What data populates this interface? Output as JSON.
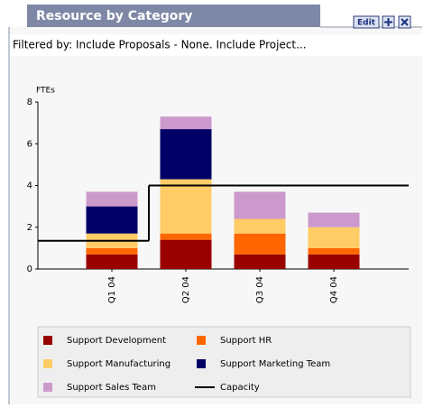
{
  "widget": {
    "title": "Resource by Category",
    "edit": "Edit",
    "filter": "Filtered by: Include Proposals - None. Include Project..."
  },
  "chart_data": {
    "type": "bar",
    "stacked": true,
    "ylabel": "FTEs",
    "categories": [
      "Q1 04",
      "Q2 04",
      "Q3 04",
      "Q4 04"
    ],
    "ylim": [
      0,
      8
    ],
    "yticks": [
      0,
      2,
      4,
      6,
      8
    ],
    "grid": false,
    "series": [
      {
        "name": "Support Development",
        "color": "#990000",
        "values": [
          0.7,
          1.4,
          0.7,
          0.7
        ]
      },
      {
        "name": "Support HR",
        "color": "#ff6600",
        "values": [
          0.3,
          0.3,
          1.0,
          0.3
        ]
      },
      {
        "name": "Support Manufacturing",
        "color": "#ffcc66",
        "values": [
          0.7,
          2.6,
          0.7,
          1.0
        ]
      },
      {
        "name": "Support Marketing Team",
        "color": "#000066",
        "values": [
          1.3,
          2.4,
          0,
          0
        ]
      },
      {
        "name": "Support Sales Team",
        "color": "#cc99cc",
        "values": [
          0.7,
          0.6,
          1.3,
          0.7
        ]
      },
      {
        "name": "Capacity",
        "type": "step",
        "color": "#000000",
        "values": [
          1.35,
          4,
          4,
          4
        ]
      }
    ]
  }
}
